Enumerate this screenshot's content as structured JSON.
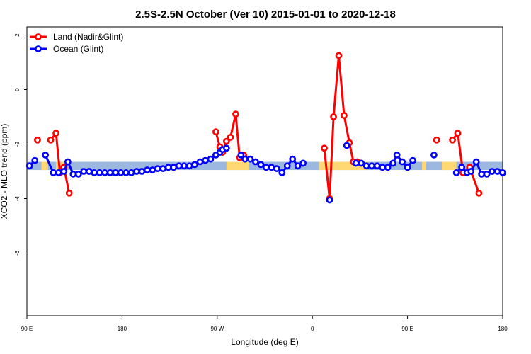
{
  "chart_data": {
    "type": "line",
    "title": "2.5S-2.5N October (Ver 10)   2015-01-01 to 2020-12-18",
    "xlabel": "Longitude (deg E)",
    "ylabel": "XCO2 - MLO trend (ppm)",
    "xlim": [
      90,
      450
    ],
    "ylim": [
      -8.3,
      2.3
    ],
    "x_ticks": [
      {
        "value": 90,
        "label": "90 E"
      },
      {
        "value": 162,
        "label": "180"
      },
      {
        "value": 234,
        "label": "90 W"
      },
      {
        "value": 306,
        "label": "0"
      },
      {
        "value": 378,
        "label": "90 E"
      },
      {
        "value": 450,
        "label": "180"
      }
    ],
    "y_ticks": [
      {
        "value": 2,
        "label": "2"
      },
      {
        "value": 0,
        "label": "0"
      },
      {
        "value": -2,
        "label": "-2"
      },
      {
        "value": -4,
        "label": "-4"
      },
      {
        "value": -6,
        "label": "-6"
      }
    ],
    "band": {
      "y_top": -2.65,
      "y_bottom": -2.95,
      "colors": {
        "ocean": "#9db8e0",
        "land": "#ffd873"
      },
      "land_segments": [
        [
          101,
          106
        ],
        [
          112,
          118
        ],
        [
          241,
          258
        ],
        [
          311,
          348
        ],
        [
          389,
          392
        ],
        [
          404,
          415
        ]
      ]
    },
    "series": [
      {
        "name": "Land (Nadir&Glint)",
        "color": "#ff0000",
        "segments": [
          [
            [
              98,
              -1.85
            ]
          ],
          [
            [
              108,
              -1.85
            ],
            [
              112,
              -1.6
            ],
            [
              115,
              -3.05
            ]
          ],
          [
            [
              118,
              -2.85
            ],
            [
              122,
              -3.8
            ]
          ],
          [
            [
              233,
              -1.55
            ],
            [
              236,
              -2.1
            ],
            [
              238,
              -2.3
            ],
            [
              241,
              -1.9
            ],
            [
              244,
              -1.75
            ],
            [
              248,
              -0.9
            ],
            [
              251,
              -2.5
            ],
            [
              254,
              -2.4
            ]
          ],
          [
            [
              315,
              -2.15
            ],
            [
              319,
              -4.0
            ],
            [
              322,
              -1.0
            ],
            [
              326,
              1.25
            ],
            [
              330,
              -0.95
            ],
            [
              334,
              -1.95
            ],
            [
              337,
              -2.65
            ],
            [
              340,
              -2.65
            ]
          ],
          [
            [
              400,
              -1.85
            ]
          ],
          [
            [
              412,
              -1.85
            ],
            [
              416,
              -1.6
            ],
            [
              420,
              -3.05
            ]
          ],
          [
            [
              425,
              -2.85
            ],
            [
              432,
              -3.8
            ]
          ]
        ]
      },
      {
        "name": "Ocean (Glint)",
        "color": "#0000ff",
        "segments": [
          [
            [
              92,
              -2.8
            ],
            [
              96,
              -2.6
            ]
          ],
          [
            [
              104,
              -2.4
            ],
            [
              110,
              -3.05
            ],
            [
              114,
              -3.05
            ],
            [
              118,
              -3.0
            ],
            [
              121,
              -2.65
            ],
            [
              125,
              -3.1
            ],
            [
              129,
              -3.1
            ],
            [
              133,
              -3.0
            ],
            [
              137,
              -3.0
            ],
            [
              141,
              -3.05
            ],
            [
              145,
              -3.05
            ],
            [
              149,
              -3.05
            ],
            [
              153,
              -3.05
            ],
            [
              157,
              -3.05
            ],
            [
              161,
              -3.05
            ],
            [
              165,
              -3.05
            ],
            [
              169,
              -3.05
            ],
            [
              173,
              -3.0
            ],
            [
              177,
              -3.0
            ],
            [
              181,
              -2.95
            ],
            [
              185,
              -2.95
            ],
            [
              189,
              -2.9
            ],
            [
              193,
              -2.9
            ],
            [
              197,
              -2.85
            ],
            [
              201,
              -2.85
            ],
            [
              205,
              -2.8
            ],
            [
              209,
              -2.8
            ],
            [
              213,
              -2.8
            ],
            [
              217,
              -2.75
            ],
            [
              221,
              -2.65
            ],
            [
              225,
              -2.6
            ],
            [
              229,
              -2.55
            ],
            [
              233,
              -2.4
            ],
            [
              236,
              -2.3
            ],
            [
              238,
              -2.2
            ],
            [
              241,
              -2.15
            ]
          ],
          [
            [
              252,
              -2.4
            ],
            [
              255,
              -2.55
            ],
            [
              259,
              -2.55
            ],
            [
              263,
              -2.65
            ],
            [
              267,
              -2.75
            ],
            [
              271,
              -2.85
            ],
            [
              275,
              -2.85
            ],
            [
              279,
              -2.9
            ],
            [
              283,
              -3.05
            ],
            [
              287,
              -2.8
            ],
            [
              291,
              -2.55
            ],
            [
              295,
              -2.8
            ],
            [
              299,
              -2.7
            ]
          ],
          [
            [
              319,
              -4.05
            ]
          ],
          [
            [
              332,
              -2.05
            ]
          ],
          [
            [
              339,
              -2.7
            ],
            [
              343,
              -2.7
            ],
            [
              347,
              -2.8
            ],
            [
              351,
              -2.8
            ],
            [
              355,
              -2.8
            ],
            [
              359,
              -2.85
            ],
            [
              363,
              -2.85
            ],
            [
              367,
              -2.7
            ],
            [
              370,
              -2.4
            ],
            [
              374,
              -2.65
            ],
            [
              378,
              -2.85
            ],
            [
              382,
              -2.6
            ]
          ],
          [
            [
              398,
              -2.4
            ]
          ],
          [
            [
              415,
              -3.05
            ],
            [
              419,
              -2.85
            ],
            [
              423,
              -3.05
            ],
            [
              426,
              -3.0
            ],
            [
              430,
              -2.65
            ],
            [
              434,
              -3.1
            ],
            [
              438,
              -3.1
            ],
            [
              442,
              -3.0
            ],
            [
              446,
              -3.0
            ],
            [
              450,
              -3.05
            ]
          ]
        ]
      }
    ]
  }
}
